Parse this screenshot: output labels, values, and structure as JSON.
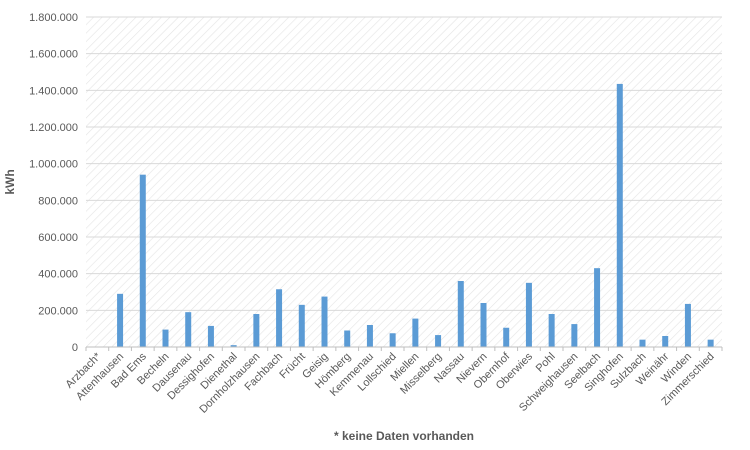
{
  "chart_data": {
    "type": "bar",
    "title": "",
    "xlabel": "* keine Daten vorhanden",
    "ylabel": "kWh",
    "ylim": [
      0,
      1800000
    ],
    "y_ticks": [
      0,
      200000,
      400000,
      600000,
      800000,
      1000000,
      1200000,
      1400000,
      1600000,
      1800000
    ],
    "y_tick_labels": [
      "0",
      "200.000",
      "400.000",
      "600.000",
      "800.000",
      "1.000.000",
      "1.200.000",
      "1.400.000",
      "1.600.000",
      "1.800.000"
    ],
    "grid": true,
    "legend": "none",
    "bar_color": "#5B9BD5",
    "categories": [
      "Arzbach*",
      "Attenhausen",
      "Bad Ems",
      "Becheln",
      "Dausenau",
      "Dessighofen",
      "Dienethal",
      "Dornholzhausen",
      "Fachbach",
      "Frücht",
      "Geisig",
      "Hömberg",
      "Kemmenau",
      "Lollschied",
      "Miellen",
      "Misselberg",
      "Nassau",
      "Nievern",
      "Obernhof",
      "Oberwies",
      "Pohl",
      "Schweighausen",
      "Seelbach",
      "Singhofen",
      "Sulzbach",
      "Weinähr",
      "Winden",
      "Zimmerschied"
    ],
    "values": [
      0,
      290000,
      940000,
      95000,
      190000,
      115000,
      10000,
      180000,
      315000,
      230000,
      275000,
      90000,
      120000,
      75000,
      155000,
      65000,
      360000,
      240000,
      105000,
      350000,
      180000,
      125000,
      430000,
      1435000,
      40000,
      60000,
      235000,
      40000
    ]
  }
}
